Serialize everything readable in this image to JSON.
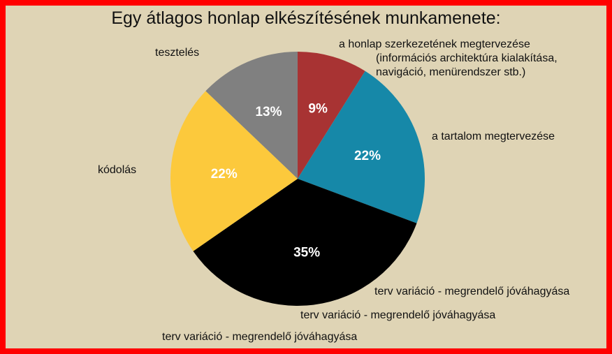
{
  "chart_data": {
    "type": "pie",
    "title": "Egy átlagos honlap elkészítésének munkamenete:",
    "slices": [
      {
        "label": "a honlap szerkezetének megtervezése",
        "sublabel_1": "(információs architektúra kialakítása,",
        "sublabel_2": "navigáció, menürendszer stb.)",
        "value": 9,
        "pct_label": "9%",
        "color": "#a83333"
      },
      {
        "label": "a tartalom megtervezése",
        "value": 22,
        "pct_label": "22%",
        "color": "#1688a8"
      },
      {
        "label": "terv variáció - megrendelő jóváhagyása",
        "value": 35,
        "pct_label": "35%",
        "color": "#000000"
      },
      {
        "label": "kódolás",
        "value": 22,
        "pct_label": "22%",
        "color": "#fcc93c"
      },
      {
        "label": "tesztelés",
        "value": 13,
        "pct_label": "13%",
        "color": "#808080"
      }
    ],
    "extra_labels": [
      "terv variáció - megrendelő jóváhagyása",
      "terv variáció - megrendelő jóváhagyása"
    ]
  }
}
